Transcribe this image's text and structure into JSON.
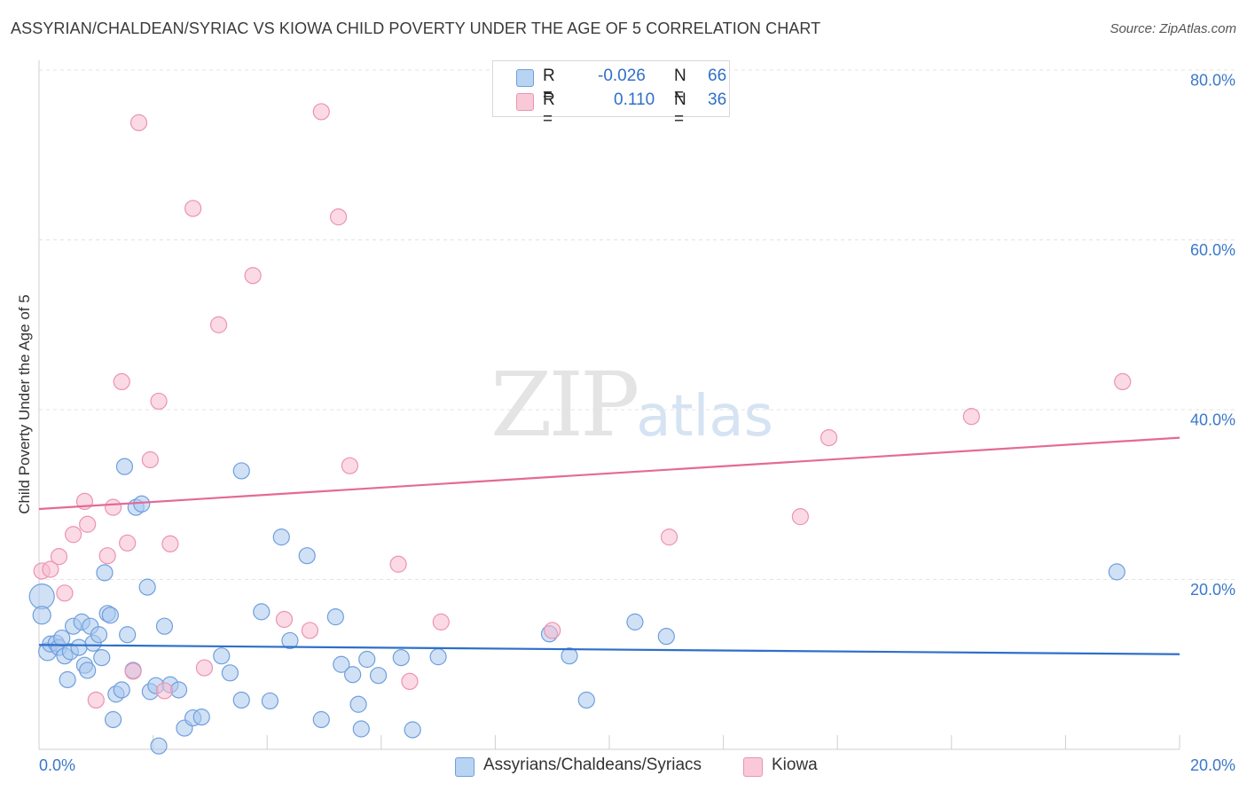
{
  "header": {
    "title": "ASSYRIAN/CHALDEAN/SYRIAC VS KIOWA CHILD POVERTY UNDER THE AGE OF 5 CORRELATION CHART",
    "source": "Source: ZipAtlas.com"
  },
  "watermark": {
    "zip": "ZIP",
    "atlas": "atlas"
  },
  "legend": {
    "r_label": "R =",
    "n_label": "N =",
    "series1": {
      "r": "-0.026",
      "n": "66"
    },
    "series2": {
      "r": "0.110",
      "n": "36"
    }
  },
  "chart_data": {
    "type": "scatter",
    "title": "ASSYRIAN/CHALDEAN/SYRIAC VS KIOWA CHILD POVERTY UNDER THE AGE OF 5 CORRELATION CHART",
    "xlabel": "",
    "ylabel": "Child Poverty Under the Age of 5",
    "xlim": [
      0,
      20
    ],
    "ylim": [
      0,
      80
    ],
    "x_tick_labels": [
      "0.0%",
      "20.0%"
    ],
    "y_tick_labels": [
      "20.0%",
      "40.0%",
      "60.0%",
      "80.0%"
    ],
    "y_ticks": [
      20,
      40,
      60,
      80
    ],
    "grid": true,
    "legend_position": "top-center",
    "colors": {
      "series1_fill": "#a9c8ee",
      "series1_stroke": "#6f9fdc",
      "series1_line": "#2f6fc9",
      "series2_fill": "#f7bcd0",
      "series2_stroke": "#eb93b2",
      "series2_line": "#e46a96"
    },
    "series": [
      {
        "name": "Assyrians/Chaldeans/Syriacs",
        "r": -0.026,
        "n": 66,
        "trend": {
          "x": [
            0,
            20
          ],
          "y": [
            12.3,
            11.2
          ]
        },
        "points": [
          [
            0.05,
            18.0,
            14
          ],
          [
            0.05,
            15.8,
            10
          ],
          [
            0.15,
            11.5,
            10
          ],
          [
            0.2,
            12.4,
            9
          ],
          [
            0.3,
            12.5,
            9
          ],
          [
            0.35,
            12.0,
            9
          ],
          [
            0.4,
            13.1,
            9
          ],
          [
            0.45,
            11.0,
            9
          ],
          [
            0.5,
            8.2,
            9
          ],
          [
            0.55,
            11.5,
            9
          ],
          [
            0.6,
            14.5,
            9
          ],
          [
            0.7,
            12.0,
            9
          ],
          [
            0.75,
            15.0,
            9
          ],
          [
            0.8,
            9.9,
            9
          ],
          [
            0.85,
            9.3,
            9
          ],
          [
            0.9,
            14.5,
            9
          ],
          [
            0.95,
            12.5,
            9
          ],
          [
            1.05,
            13.5,
            9
          ],
          [
            1.1,
            10.8,
            9
          ],
          [
            1.15,
            20.8,
            9
          ],
          [
            1.2,
            16.0,
            9
          ],
          [
            1.25,
            15.8,
            9
          ],
          [
            1.3,
            3.5,
            9
          ],
          [
            1.35,
            6.5,
            9
          ],
          [
            1.45,
            7.0,
            9
          ],
          [
            1.5,
            33.3,
            9
          ],
          [
            1.55,
            13.5,
            9
          ],
          [
            1.65,
            9.3,
            9
          ],
          [
            1.7,
            28.5,
            9
          ],
          [
            1.8,
            28.9,
            9
          ],
          [
            1.9,
            19.1,
            9
          ],
          [
            1.95,
            6.8,
            9
          ],
          [
            2.05,
            7.5,
            9
          ],
          [
            2.1,
            0.4,
            9
          ],
          [
            2.2,
            14.5,
            9
          ],
          [
            2.3,
            7.6,
            9
          ],
          [
            2.45,
            7.0,
            9
          ],
          [
            2.55,
            2.5,
            9
          ],
          [
            2.7,
            3.7,
            9
          ],
          [
            2.85,
            3.8,
            9
          ],
          [
            3.2,
            11.0,
            9
          ],
          [
            3.35,
            9.0,
            9
          ],
          [
            3.55,
            32.8,
            9
          ],
          [
            3.55,
            5.8,
            9
          ],
          [
            3.9,
            16.2,
            9
          ],
          [
            4.05,
            5.7,
            9
          ],
          [
            4.25,
            25.0,
            9
          ],
          [
            4.4,
            12.8,
            9
          ],
          [
            4.7,
            22.8,
            9
          ],
          [
            4.95,
            3.5,
            9
          ],
          [
            5.2,
            15.6,
            9
          ],
          [
            5.3,
            10.0,
            9
          ],
          [
            5.5,
            8.8,
            9
          ],
          [
            5.6,
            5.3,
            9
          ],
          [
            5.65,
            2.4,
            9
          ],
          [
            5.75,
            10.6,
            9
          ],
          [
            5.95,
            8.7,
            9
          ],
          [
            6.35,
            10.8,
            9
          ],
          [
            6.55,
            2.3,
            9
          ],
          [
            7.0,
            10.9,
            9
          ],
          [
            8.95,
            13.6,
            9
          ],
          [
            9.3,
            11.0,
            9
          ],
          [
            9.6,
            5.8,
            9
          ],
          [
            10.45,
            15.0,
            9
          ],
          [
            11.0,
            13.3,
            9
          ],
          [
            18.9,
            20.9,
            9
          ]
        ]
      },
      {
        "name": "Kiowa",
        "r": 0.11,
        "n": 36,
        "trend": {
          "x": [
            0,
            20
          ],
          "y": [
            28.3,
            36.7
          ]
        },
        "points": [
          [
            0.05,
            21.0,
            9
          ],
          [
            0.2,
            21.2,
            9
          ],
          [
            0.35,
            22.7,
            9
          ],
          [
            0.45,
            18.4,
            9
          ],
          [
            0.6,
            25.3,
            9
          ],
          [
            0.8,
            29.2,
            9
          ],
          [
            0.85,
            26.5,
            9
          ],
          [
            1.0,
            5.8,
            9
          ],
          [
            1.2,
            22.8,
            9
          ],
          [
            1.3,
            28.5,
            9
          ],
          [
            1.45,
            43.3,
            9
          ],
          [
            1.55,
            24.3,
            9
          ],
          [
            1.65,
            9.2,
            9
          ],
          [
            1.75,
            73.8,
            9
          ],
          [
            1.95,
            34.1,
            9
          ],
          [
            2.1,
            41.0,
            9
          ],
          [
            2.2,
            6.9,
            9
          ],
          [
            2.3,
            24.2,
            9
          ],
          [
            2.7,
            63.7,
            9
          ],
          [
            2.9,
            9.6,
            9
          ],
          [
            3.15,
            50.0,
            9
          ],
          [
            3.75,
            55.8,
            9
          ],
          [
            4.3,
            15.3,
            9
          ],
          [
            4.75,
            14.0,
            9
          ],
          [
            4.95,
            75.1,
            9
          ],
          [
            5.25,
            62.7,
            9
          ],
          [
            5.45,
            33.4,
            9
          ],
          [
            6.3,
            21.8,
            9
          ],
          [
            6.5,
            8.0,
            9
          ],
          [
            7.05,
            15.0,
            9
          ],
          [
            9.0,
            14.0,
            9
          ],
          [
            11.05,
            25.0,
            9
          ],
          [
            13.35,
            27.4,
            9
          ],
          [
            13.85,
            36.7,
            9
          ],
          [
            16.35,
            39.2,
            9
          ],
          [
            19.0,
            43.3,
            9
          ]
        ]
      }
    ]
  },
  "bottom_legend": {
    "series1_label": "Assyrians/Chaldeans/Syriacs",
    "series2_label": "Kiowa"
  }
}
